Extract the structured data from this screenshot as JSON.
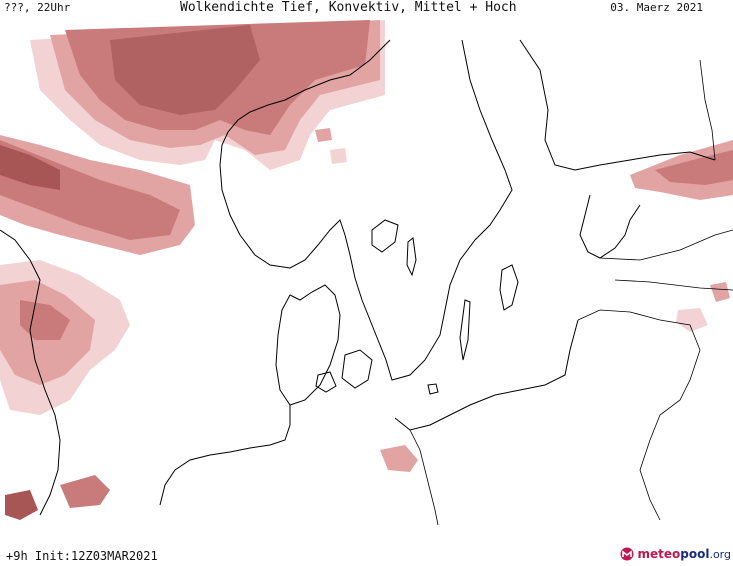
{
  "header": {
    "left_label": "???, 22Uhr",
    "title": "Wolkendichte  Tief, Konvektiv, Mittel + Hoch",
    "date": "03. Maerz 2021"
  },
  "footer": {
    "init_label": "+9h  Init:12Z03MAR2021"
  },
  "logo": {
    "part1": "meteo",
    "part2": "pool",
    "part3": ".org",
    "accent_color": "#c0174f",
    "brand_color": "#1a2a80"
  },
  "map": {
    "cloud_colors": [
      "#f2d2d2",
      "#e2a3a3",
      "#c97a7a",
      "#a85555"
    ],
    "coastline_color": "#000000"
  }
}
